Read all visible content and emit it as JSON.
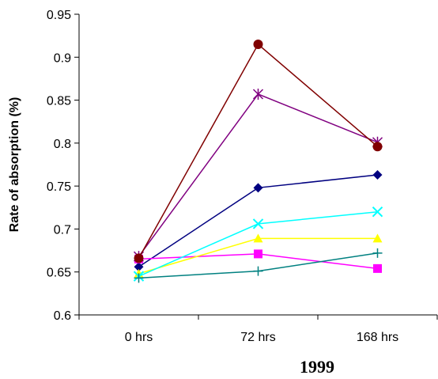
{
  "chart_data": {
    "type": "line",
    "title": "1999",
    "xlabel": "",
    "ylabel": "Rate of absorption (%)",
    "categories": [
      "0 hrs",
      "72 hrs",
      "168 hrs"
    ],
    "ylim": [
      0.6,
      0.95
    ],
    "yticks": [
      "0.6",
      "0.65",
      "0.7",
      "0.75",
      "0.8",
      "0.85",
      "0.9",
      "0.95"
    ],
    "grid": false,
    "legend": "none",
    "series": [
      {
        "color": "#000080",
        "marker": "diamond",
        "values": [
          0.656,
          0.748,
          0.763
        ]
      },
      {
        "color": "#FF00FF",
        "marker": "square",
        "values": [
          0.665,
          0.671,
          0.654
        ]
      },
      {
        "color": "#FFFF00",
        "marker": "triangle",
        "values": [
          0.648,
          0.689,
          0.689
        ]
      },
      {
        "color": "#00FFFF",
        "marker": "x",
        "values": [
          0.645,
          0.706,
          0.72
        ]
      },
      {
        "color": "#800080",
        "marker": "star",
        "values": [
          0.668,
          0.857,
          0.801
        ]
      },
      {
        "color": "#800000",
        "marker": "circle",
        "values": [
          0.666,
          0.915,
          0.796
        ]
      },
      {
        "color": "#008080",
        "marker": "plus",
        "values": [
          0.643,
          0.651,
          0.672
        ]
      }
    ]
  }
}
